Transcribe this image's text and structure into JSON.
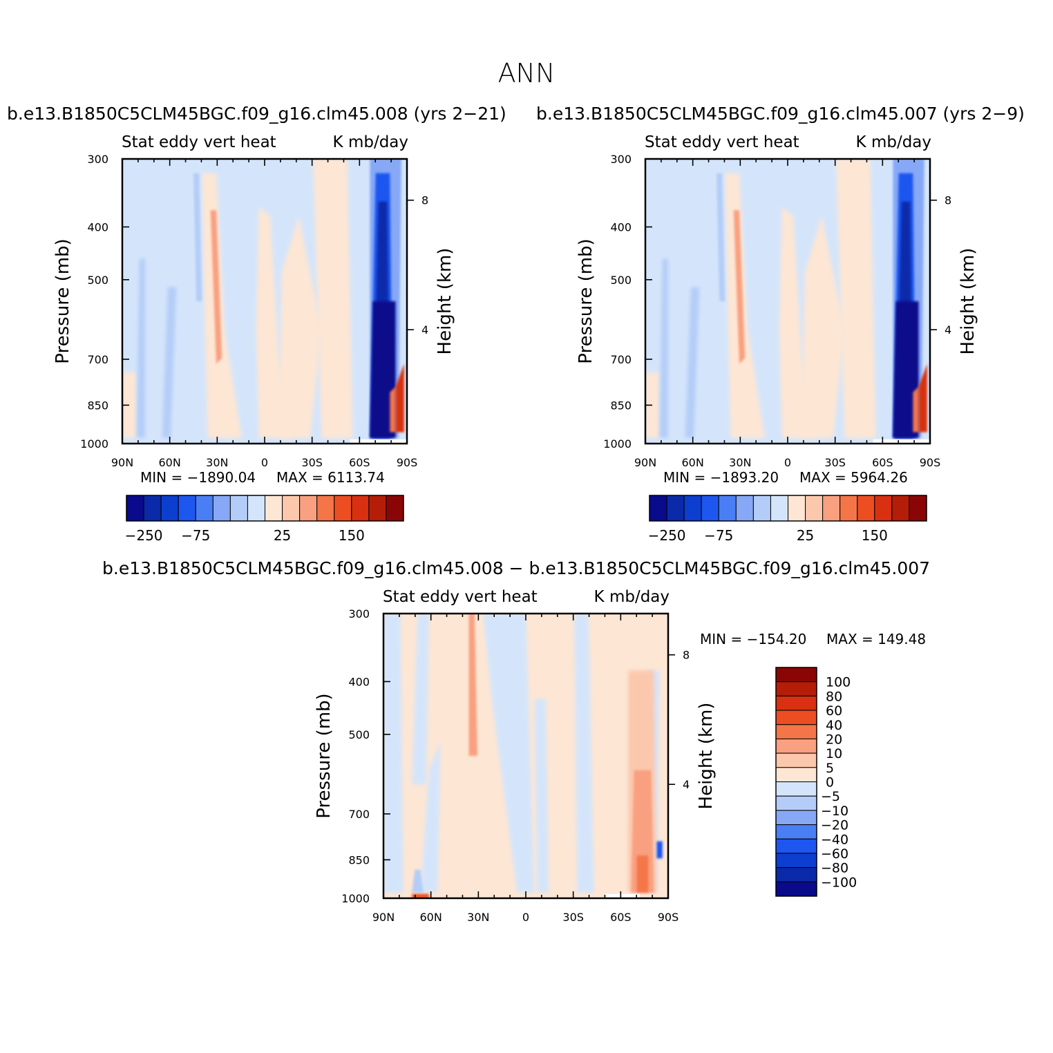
{
  "page": {
    "title": "ANN"
  },
  "panels": [
    {
      "id": "p1",
      "case_title": "b.e13.B1850C5CLM45BGC.f09_g16.clm45.008 (yrs 2−21)",
      "var_title": "Stat eddy vert heat",
      "units": "K mb/day",
      "min_label": "MIN = −1890.04",
      "max_label": "MAX = 6113.74"
    },
    {
      "id": "p2",
      "case_title": "b.e13.B1850C5CLM45BGC.f09_g16.clm45.007 (yrs 2−9)",
      "var_title": "Stat eddy vert heat",
      "units": "K mb/day",
      "min_label": "MIN = −1893.20",
      "max_label": "MAX = 5964.26"
    },
    {
      "id": "p3",
      "case_title": "b.e13.B1850C5CLM45BGC.f09_g16.clm45.008 − b.e13.B1850C5CLM45BGC.f09_g16.clm45.007",
      "var_title": "Stat eddy vert heat",
      "units": "K mb/day",
      "min_label": "MIN = −154.20",
      "max_label": "MAX = 149.48"
    }
  ],
  "chart_data": [
    {
      "type": "heatmap",
      "title": "Stat eddy vert heat",
      "units": "K mb/day",
      "xlabel": "",
      "ylabel": "Pressure (mb)",
      "ylabel_right": "Height (km)",
      "x_ticks": [
        "90N",
        "60N",
        "30N",
        "0",
        "30S",
        "60S",
        "90S"
      ],
      "y_ticks": [
        "300",
        "400",
        "500",
        "700",
        "850",
        "1000"
      ],
      "y_ticks_right": [
        "8",
        "4"
      ],
      "ylim": [
        1000,
        300
      ],
      "min": -1890.04,
      "max": 6113.74,
      "colorbar_labels": [
        "−250",
        "−75",
        "25",
        "150"
      ],
      "colors": [
        "#0a0a8c",
        "#0a2aaa",
        "#0c3ed0",
        "#1e56f0",
        "#4a7ef5",
        "#86a8f7",
        "#b4cdf8",
        "#d4e5fb",
        "#fde6d4",
        "#fcc8ad",
        "#f9a080",
        "#f47648",
        "#ec4e22",
        "#d83010",
        "#b41e08",
        "#8a0606"
      ]
    },
    {
      "type": "heatmap",
      "title": "Stat eddy vert heat",
      "units": "K mb/day",
      "xlabel": "",
      "ylabel": "Pressure (mb)",
      "ylabel_right": "Height (km)",
      "x_ticks": [
        "90N",
        "60N",
        "30N",
        "0",
        "30S",
        "60S",
        "90S"
      ],
      "y_ticks": [
        "300",
        "400",
        "500",
        "700",
        "850",
        "1000"
      ],
      "y_ticks_right": [
        "8",
        "4"
      ],
      "ylim": [
        1000,
        300
      ],
      "min": -1893.2,
      "max": 5964.26,
      "colorbar_labels": [
        "−250",
        "−75",
        "25",
        "150"
      ],
      "colors": [
        "#0a0a8c",
        "#0a2aaa",
        "#0c3ed0",
        "#1e56f0",
        "#4a7ef5",
        "#86a8f7",
        "#b4cdf8",
        "#d4e5fb",
        "#fde6d4",
        "#fcc8ad",
        "#f9a080",
        "#f47648",
        "#ec4e22",
        "#d83010",
        "#b41e08",
        "#8a0606"
      ]
    },
    {
      "type": "heatmap",
      "title": "Stat eddy vert heat",
      "units": "K mb/day",
      "xlabel": "",
      "ylabel": "Pressure (mb)",
      "ylabel_right": "Height (km)",
      "x_ticks": [
        "90N",
        "60N",
        "30N",
        "0",
        "30S",
        "60S",
        "90S"
      ],
      "y_ticks": [
        "300",
        "400",
        "500",
        "700",
        "850",
        "1000"
      ],
      "y_ticks_right": [
        "8",
        "4"
      ],
      "ylim": [
        1000,
        300
      ],
      "min": -154.2,
      "max": 149.48,
      "colorbar_labels": [
        "100",
        "80",
        "60",
        "40",
        "20",
        "10",
        "5",
        "0",
        "−5",
        "−10",
        "−20",
        "−40",
        "−60",
        "−80",
        "−100"
      ],
      "colors": [
        "#8a0606",
        "#b41e08",
        "#d83010",
        "#ec4e22",
        "#f47648",
        "#f9a080",
        "#fcc8ad",
        "#fde6d4",
        "#d4e5fb",
        "#b4cdf8",
        "#86a8f7",
        "#4a7ef5",
        "#1e56f0",
        "#0c3ed0",
        "#0a2aaa",
        "#0a0a8c"
      ]
    }
  ]
}
